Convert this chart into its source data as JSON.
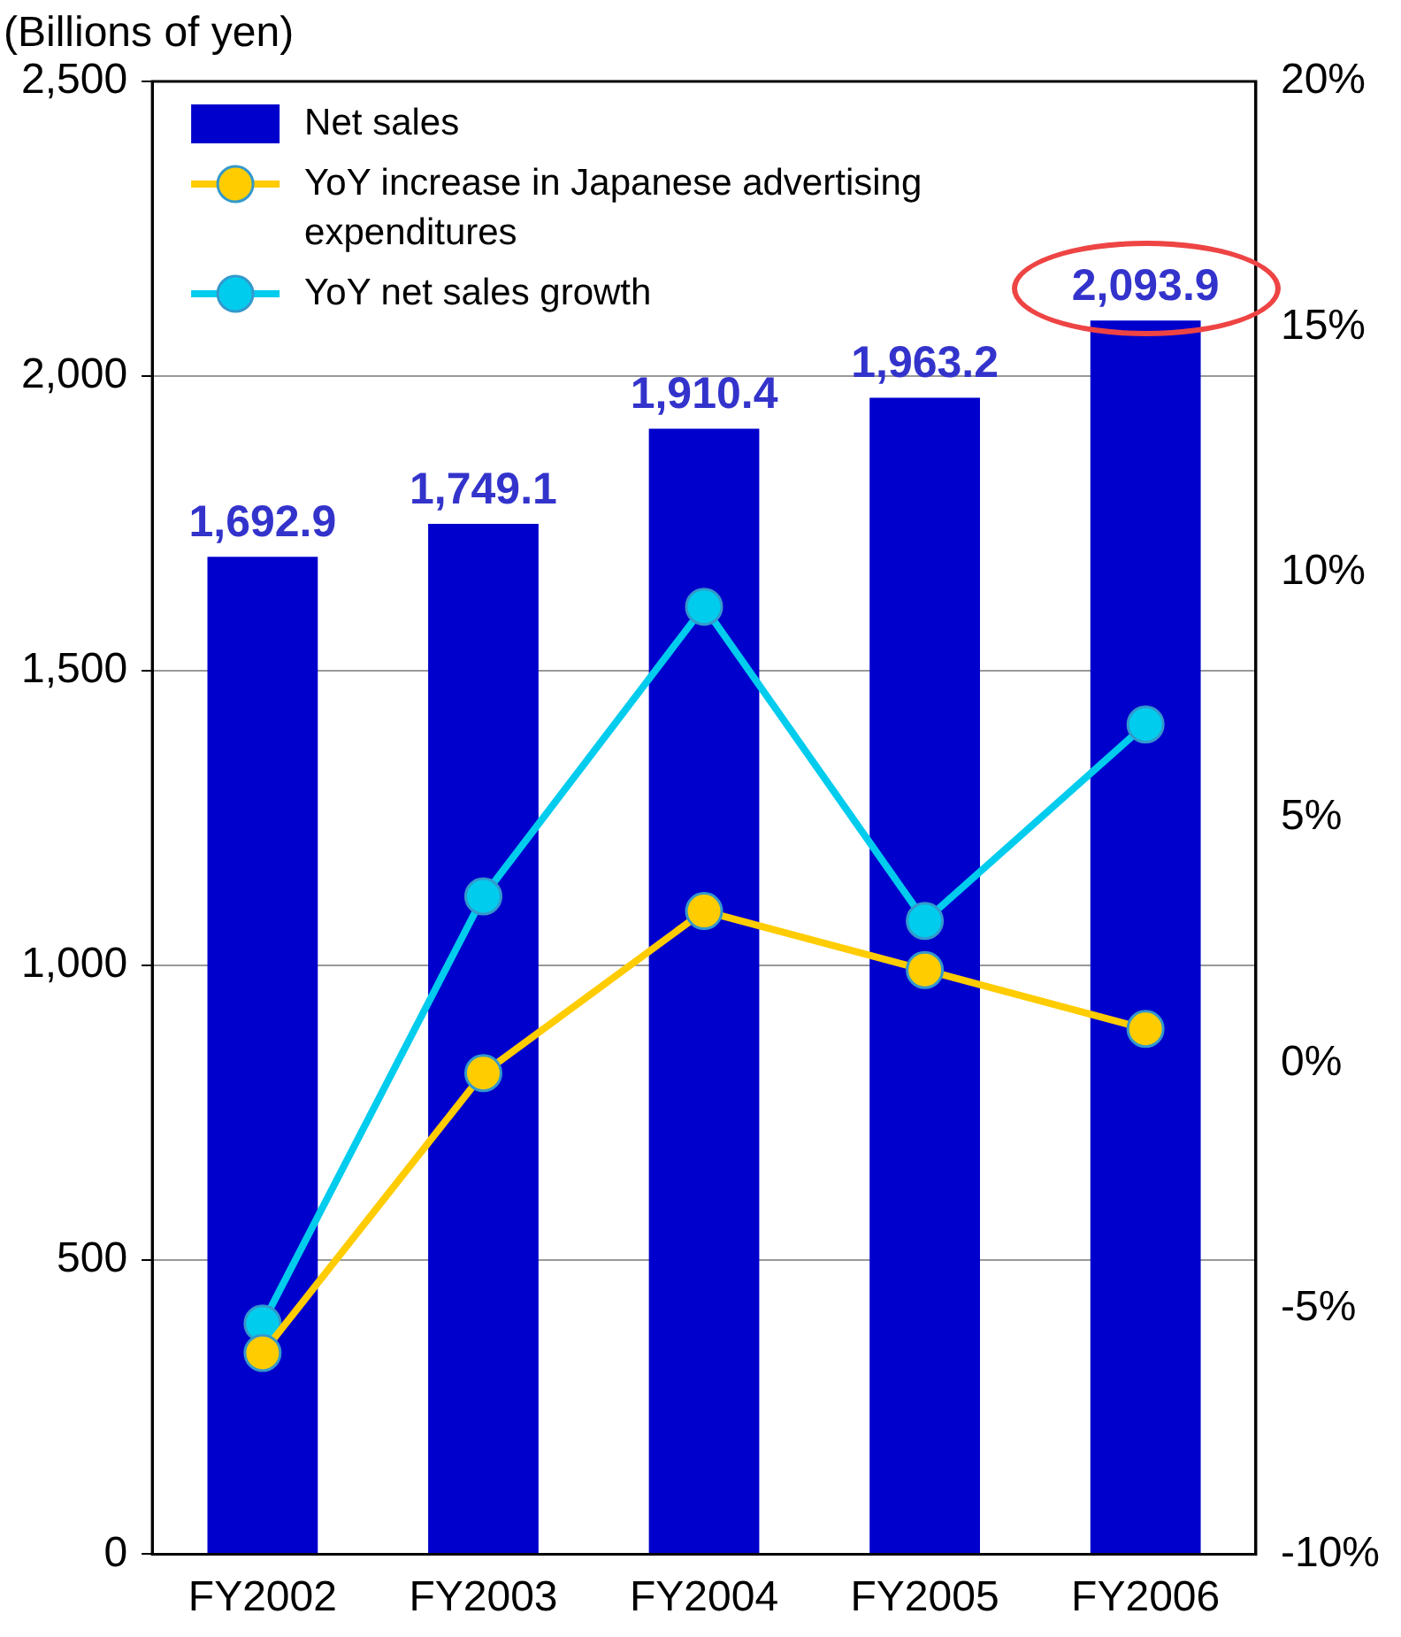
{
  "chart_data": {
    "type": "bar",
    "ylabel": "(Billions of yen)",
    "categories": [
      "FY2002",
      "FY2003",
      "FY2004",
      "FY2005",
      "FY2006"
    ],
    "series": [
      {
        "name": "Net sales",
        "color": "#0000cc",
        "values": [
          1692.9,
          1749.1,
          1910.4,
          1963.2,
          2093.9
        ],
        "value_labels": [
          "1,692.9",
          "1,749.1",
          "1,910.4",
          "1,963.2",
          "2,093.9"
        ]
      },
      {
        "name": "YoY increase in Japanese advertising expenditures",
        "type": "line",
        "axis": "y2",
        "color": "#ffcc00",
        "values": [
          -5.9,
          -0.2,
          3.1,
          1.9,
          0.7
        ]
      },
      {
        "name": "YoY net sales growth",
        "type": "line",
        "axis": "y2",
        "color": "#00ccee",
        "values": [
          -5.3,
          3.4,
          9.3,
          2.9,
          6.9
        ]
      }
    ],
    "ylim": [
      0,
      2500
    ],
    "yticks": [
      0,
      {
        "value": 500,
        "label": "500"
      },
      {
        "value": 1000,
        "label": "1,000"
      },
      {
        "value": 1500,
        "label": "1,500"
      },
      {
        "value": 2000,
        "label": "2,000"
      },
      {
        "value": 2500,
        "label": "2,500"
      }
    ],
    "y2lim": [
      -10,
      20
    ],
    "y2ticks": [
      {
        "value": -10,
        "label": "-10%"
      },
      {
        "value": -5,
        "label": "-5%"
      },
      {
        "value": 0,
        "label": "0%"
      },
      {
        "value": 5,
        "label": "5%"
      },
      {
        "value": 10,
        "label": "10%"
      },
      {
        "value": 15,
        "label": "15%"
      },
      {
        "value": 20,
        "label": "20%"
      }
    ],
    "grid": "y",
    "legend": "top left",
    "marker": "circle"
  }
}
